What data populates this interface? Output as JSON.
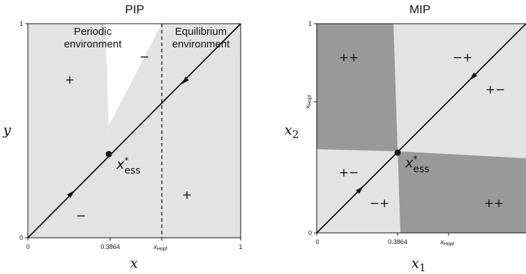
{
  "pip": {
    "title": "PIP",
    "xlabel": "x",
    "ylabel": "y",
    "xticks": [
      "0",
      "0.3864",
      "x",
      "Hopf",
      "1"
    ],
    "yticks": [
      "0",
      "1"
    ],
    "region_periodic_line1": "Periodic",
    "region_periodic_line2": "environment",
    "region_equilibrium_line1": "Equilibrium",
    "region_equilibrium_line2": "environment",
    "sign_upper_left": "+",
    "sign_upper_mid": "−",
    "sign_lower_left": "−",
    "sign_lower_right": "+",
    "ess_x": "x",
    "ess_sup": "*",
    "ess_sub": "ess"
  },
  "mip": {
    "title": "MIP",
    "xlabel_main": "x",
    "xlabel_sub": "1",
    "ylabel_main": "x",
    "ylabel_sub": "2",
    "xticks": [
      "0",
      "0.3864",
      "x",
      "Hopf"
    ],
    "yticks": [
      "0",
      "1",
      "x",
      "Hopf"
    ],
    "sign_top_left": "++",
    "sign_top_right": "−+",
    "sign_right_mid": "+−",
    "sign_mid_left": "+−",
    "sign_bottom_mid": "−+",
    "sign_bottom_right": "++",
    "ess_x": "x",
    "ess_sup": "*",
    "ess_sub": "ess"
  },
  "colors": {
    "light_region": "#e3e3e3",
    "dark_region": "#999999",
    "line": "#111111"
  }
}
